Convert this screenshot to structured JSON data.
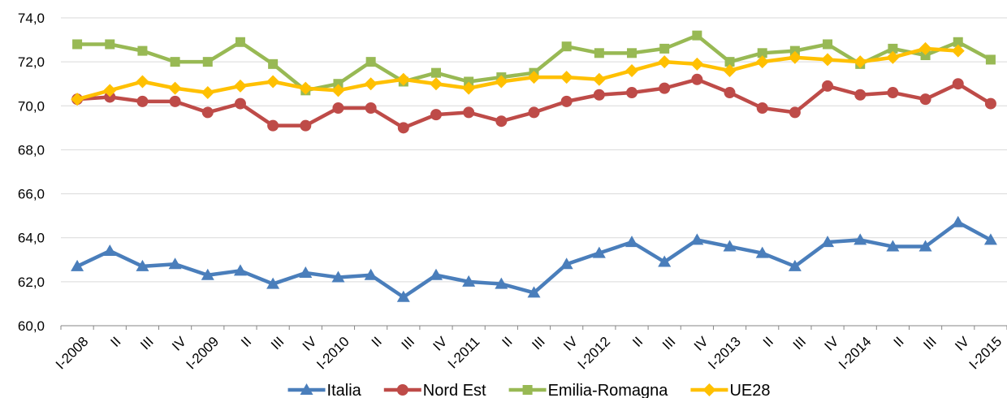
{
  "chart_data": {
    "type": "line",
    "categories": [
      "I-2008",
      "II",
      "III",
      "IV",
      "I-2009",
      "II",
      "III",
      "IV",
      "I-2010",
      "II",
      "III",
      "IV",
      "I-2011",
      "II",
      "III",
      "IV",
      "I-2012",
      "II",
      "III",
      "IV",
      "I-2013",
      "II",
      "III",
      "IV",
      "I-2014",
      "II",
      "III",
      "IV",
      "I-2015"
    ],
    "series": [
      {
        "name": "Italia",
        "color": "#4a7ebb",
        "marker": "triangle",
        "values": [
          62.7,
          63.4,
          62.7,
          62.8,
          62.3,
          62.5,
          61.9,
          62.4,
          62.2,
          62.3,
          61.3,
          62.3,
          62.0,
          61.9,
          61.5,
          62.8,
          63.3,
          63.8,
          62.9,
          63.9,
          63.6,
          63.3,
          62.7,
          63.8,
          63.9,
          63.6,
          63.6,
          64.7,
          63.9
        ]
      },
      {
        "name": "Nord Est",
        "color": "#be4b48",
        "marker": "circle",
        "values": [
          70.3,
          70.4,
          70.2,
          70.2,
          69.7,
          70.1,
          69.1,
          69.1,
          69.9,
          69.9,
          69.0,
          69.6,
          69.7,
          69.3,
          69.7,
          70.2,
          70.5,
          70.6,
          70.8,
          71.2,
          70.6,
          69.9,
          69.7,
          70.9,
          70.5,
          70.6,
          70.3,
          71.0,
          70.1
        ]
      },
      {
        "name": "Emilia-Romagna",
        "color": "#98b954",
        "marker": "square",
        "values": [
          72.8,
          72.8,
          72.5,
          72.0,
          72.0,
          72.9,
          71.9,
          70.7,
          71.0,
          72.0,
          71.1,
          71.5,
          71.1,
          71.3,
          71.5,
          72.7,
          72.4,
          72.4,
          72.6,
          73.2,
          72.0,
          72.4,
          72.5,
          72.8,
          71.9,
          72.6,
          72.3,
          72.9,
          72.1
        ]
      },
      {
        "name": "UE28",
        "color": "#ffc000",
        "marker": "diamond",
        "values": [
          70.3,
          70.7,
          71.1,
          70.8,
          70.6,
          70.9,
          71.1,
          70.8,
          70.7,
          71.0,
          71.2,
          71.0,
          70.8,
          71.1,
          71.3,
          71.3,
          71.2,
          71.6,
          72.0,
          71.9,
          71.6,
          72.0,
          72.2,
          72.1,
          72.0,
          72.2,
          72.6,
          72.5,
          null
        ]
      }
    ],
    "ylim": [
      60,
      74
    ],
    "yticks": [
      {
        "value": 60,
        "label": "60,0"
      },
      {
        "value": 62,
        "label": "62,0"
      },
      {
        "value": 64,
        "label": "64,0"
      },
      {
        "value": 66,
        "label": "66,0"
      },
      {
        "value": 68,
        "label": "68,0"
      },
      {
        "value": 70,
        "label": "70,0"
      },
      {
        "value": 72,
        "label": "72,0"
      },
      {
        "value": 74,
        "label": "74,0"
      }
    ],
    "grid": true,
    "legend": "bottom"
  }
}
